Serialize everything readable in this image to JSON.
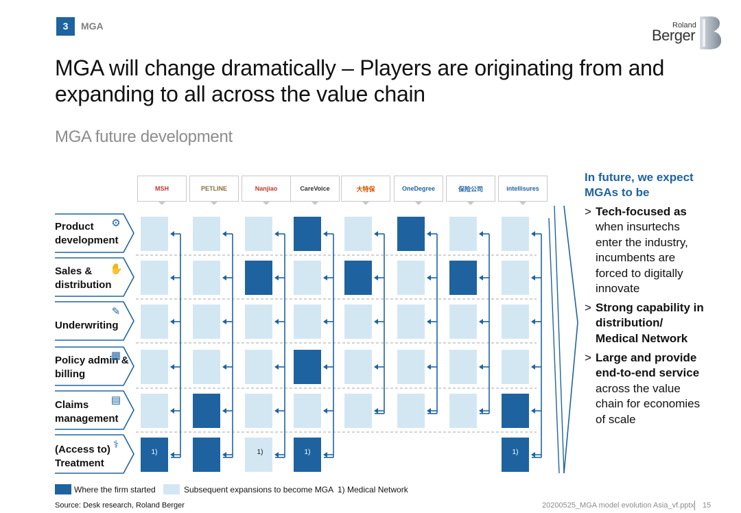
{
  "header": {
    "section_number": "3",
    "section_label": "MGA",
    "logo_roland": "Roland",
    "logo_berger": "Berger",
    "title": "MGA will change dramatically – Players are originating from and expanding to all across the value chain",
    "subtitle": "MGA future development"
  },
  "companies": [
    {
      "name": "MSH"
    },
    {
      "name": "PETLINE"
    },
    {
      "name": "Nanjiao"
    },
    {
      "name": "CareVoice"
    },
    {
      "name": "大特保"
    },
    {
      "name": "OneDegree"
    },
    {
      "name": "保险公司"
    },
    {
      "name": "intellisures"
    }
  ],
  "value_chain": [
    {
      "label": "Product development",
      "icon": "gear-icon"
    },
    {
      "label": "Sales & distribution",
      "icon": "handshake-icon"
    },
    {
      "label": "Underwriting",
      "icon": "document-pen-icon"
    },
    {
      "label": "Policy admin & billing",
      "icon": "calculator-icon"
    },
    {
      "label": "Claims management",
      "icon": "clipboard-icon"
    },
    {
      "label": "(Access to) Treatment",
      "icon": "stethoscope-icon"
    }
  ],
  "grid": [
    [
      "light",
      "light",
      "light",
      "dark",
      "light",
      "dark",
      "light",
      "light"
    ],
    [
      "light",
      "light",
      "dark",
      "light",
      "dark",
      "light",
      "dark",
      "light"
    ],
    [
      "light",
      "light",
      "light",
      "light",
      "light",
      "light",
      "light",
      "light"
    ],
    [
      "light",
      "light",
      "light",
      "dark",
      "light",
      "light",
      "light",
      "light"
    ],
    [
      "light",
      "dark",
      "light",
      "light",
      "light",
      "light",
      "light",
      "dark"
    ],
    [
      "dark",
      "dark",
      "light",
      "dark",
      "none",
      "none",
      "none",
      "dark"
    ]
  ],
  "grid_note": "1)",
  "right_panel": {
    "heading": "In future, we expect MGAs to be",
    "bullets": [
      {
        "bold": "Tech-focused as",
        "rest": "when insurtechs enter the industry, incumbents are forced to digitally innovate"
      },
      {
        "bold": "Strong capability in distribution/ Medical Network",
        "rest": ""
      },
      {
        "bold": "Large and provide end-to-end service",
        "rest": "across the value chain for economies of scale"
      }
    ]
  },
  "legend": {
    "started": "Where the firm started",
    "expansion": "Subsequent expansions to become MGA",
    "note": "1) Medical Network",
    "dark_color": "#1e63a0",
    "light_color": "#d3e7f3"
  },
  "footer": {
    "source": "Source: Desk research, Roland Berger",
    "file": "20200525_MGA model evolution Asia_vf.pptx",
    "page": "15"
  }
}
